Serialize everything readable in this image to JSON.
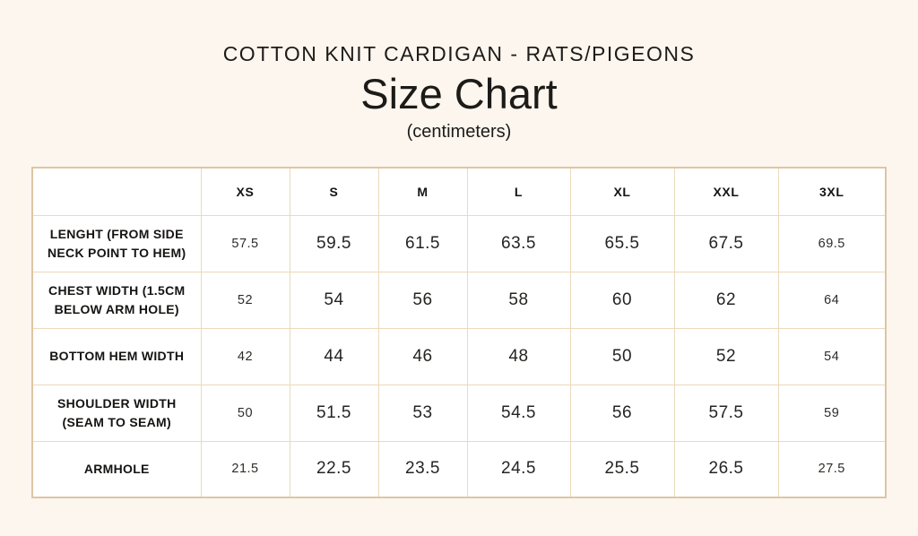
{
  "page": {
    "product_title": "COTTON KNIT CARDIGAN - RATS/PIGEONS",
    "title": "Size Chart",
    "subtitle": "(centimeters)"
  },
  "colors": {
    "page_background": "#fcf6ef",
    "cell_background": "#ffffff",
    "table_border": "#e6d2b3",
    "table_outer_border": "#ddc6a4",
    "text": "#1d1b18"
  },
  "table": {
    "columns": [
      "",
      "XS",
      "S",
      "M",
      "L",
      "XL",
      "XXL",
      "3XL"
    ],
    "rows": [
      {
        "label": "LENGHT (FROM SIDE NECK POINT TO HEM)",
        "values": [
          "57.5",
          "59.5",
          "61.5",
          "63.5",
          "65.5",
          "67.5",
          "69.5"
        ]
      },
      {
        "label": "CHEST WIDTH (1.5CM BELOW ARM HOLE)",
        "values": [
          "52",
          "54",
          "56",
          "58",
          "60",
          "62",
          "64"
        ]
      },
      {
        "label": "BOTTOM HEM WIDTH",
        "values": [
          "42",
          "44",
          "46",
          "48",
          "50",
          "52",
          "54"
        ]
      },
      {
        "label": "SHOULDER WIDTH (SEAM TO SEAM)",
        "values": [
          "50",
          "51.5",
          "53",
          "54.5",
          "56",
          "57.5",
          "59"
        ]
      },
      {
        "label": "ARMHOLE",
        "values": [
          "21.5",
          "22.5",
          "23.5",
          "24.5",
          "25.5",
          "26.5",
          "27.5"
        ]
      }
    ]
  }
}
